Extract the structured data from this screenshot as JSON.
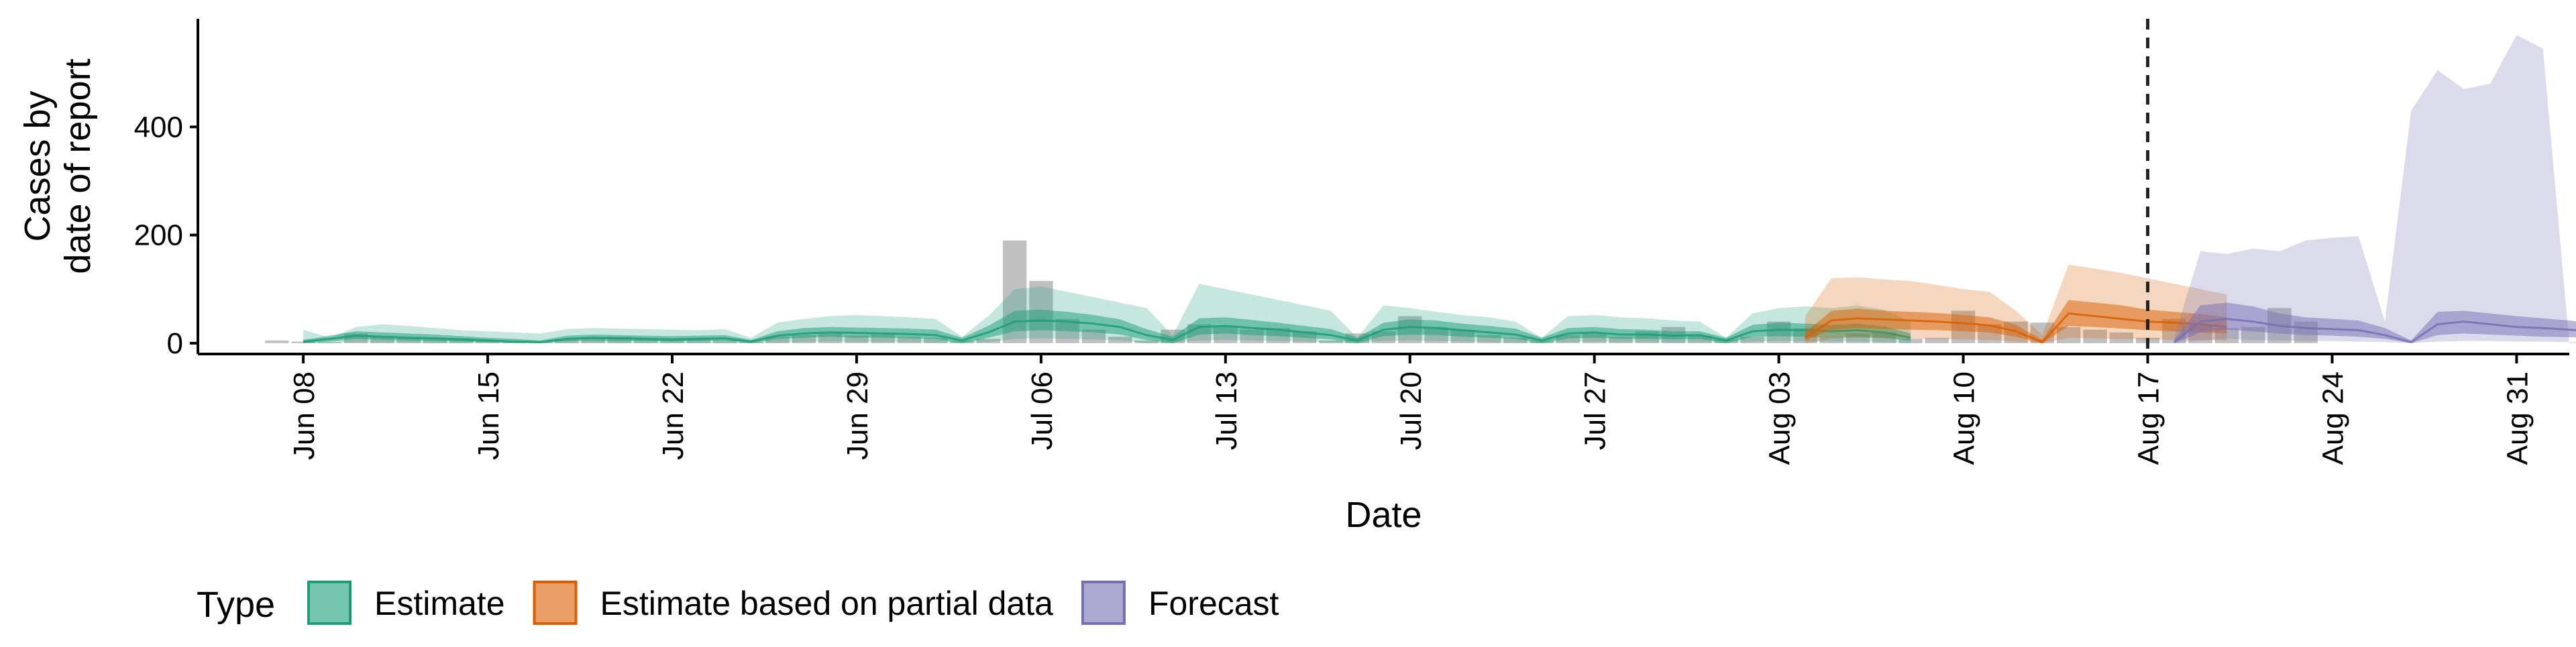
{
  "chart_data": {
    "type": "area",
    "title": "",
    "xlabel": "Date",
    "ylabel_lines": [
      "Cases by",
      "date of report"
    ],
    "ylim": [
      -20,
      600
    ],
    "y_ticks": [
      0,
      200,
      400
    ],
    "x_range": [
      "2020-06-04",
      "2020-09-02"
    ],
    "x_tick_dates": [
      "2020-06-08",
      "2020-06-15",
      "2020-06-22",
      "2020-06-29",
      "2020-07-06",
      "2020-07-13",
      "2020-07-20",
      "2020-07-27",
      "2020-08-03",
      "2020-08-10",
      "2020-08-17",
      "2020-08-24",
      "2020-08-31"
    ],
    "x_tick_labels": [
      "Jun 08",
      "Jun 15",
      "Jun 22",
      "Jun 29",
      "Jul 06",
      "Jul 13",
      "Jul 20",
      "Jul 27",
      "Aug 03",
      "Aug 10",
      "Aug 17",
      "Aug 24",
      "Aug 31"
    ],
    "forecast_start": "2020-08-17",
    "grid": false,
    "legend": {
      "position": "bottom",
      "title": "Type",
      "items": [
        {
          "label": "Estimate",
          "fill": "#1b9e77",
          "stroke": "#1b9e77"
        },
        {
          "label": "Estimate based on partial data",
          "fill": "#d95f02",
          "stroke": "#d95f02"
        },
        {
          "label": "Forecast",
          "fill": "#7570b3",
          "stroke": "#7570b3"
        }
      ]
    },
    "colors": {
      "Estimate": "#1b9e77",
      "Estimate based on partial data": "#d95f02",
      "Forecast": "#7570b3",
      "reported_cases": "#9e9e9e"
    },
    "reported_cases": {
      "start_date": "2020-06-07",
      "values": [
        5,
        3,
        2,
        18,
        12,
        10,
        8,
        9,
        5,
        3,
        2,
        8,
        10,
        12,
        8,
        7,
        8,
        6,
        3,
        12,
        15,
        18,
        14,
        16,
        12,
        10,
        5,
        8,
        190,
        115,
        45,
        25,
        12,
        5,
        25,
        35,
        30,
        25,
        28,
        22,
        5,
        18,
        22,
        50,
        30,
        25,
        15,
        10,
        5,
        15,
        18,
        12,
        22,
        30,
        14,
        8,
        12,
        40,
        28,
        12,
        18,
        20,
        8,
        10,
        60,
        35,
        40,
        38,
        30,
        25,
        20,
        10,
        45,
        35,
        28,
        30,
        65,
        40
      ]
    },
    "series": [
      {
        "name": "Estimate",
        "segments": [
          {
            "start_date": "2020-06-08",
            "median": [
              3,
              8,
              14,
              12,
              10,
              9,
              7,
              5,
              3,
              2,
              8,
              10,
              9,
              8,
              7,
              8,
              9,
              3,
              14,
              18,
              20,
              19,
              18,
              17,
              15,
              5,
              20,
              40,
              42,
              40,
              36,
              30,
              15,
              6,
              30,
              32,
              28,
              25,
              20,
              15,
              5,
              25,
              30,
              28,
              24,
              20,
              16,
              5,
              18,
              20,
              16,
              16,
              14,
              15,
              5,
              22,
              25,
              24,
              22,
              24,
              20,
              10
            ],
            "inner_low": [
              0,
              3,
              8,
              6,
              5,
              4,
              3,
              2,
              1,
              0,
              4,
              5,
              4,
              4,
              3,
              4,
              5,
              0,
              8,
              10,
              12,
              10,
              10,
              9,
              8,
              0,
              10,
              22,
              24,
              22,
              20,
              16,
              6,
              0,
              16,
              18,
              15,
              13,
              10,
              7,
              0,
              13,
              16,
              15,
              12,
              10,
              8,
              0,
              9,
              10,
              8,
              8,
              7,
              8,
              0,
              12,
              13,
              12,
              11,
              12,
              10,
              4
            ],
            "inner_high": [
              6,
              14,
              22,
              20,
              18,
              16,
              13,
              10,
              8,
              5,
              14,
              16,
              15,
              14,
              13,
              14,
              15,
              6,
              22,
              28,
              30,
              29,
              28,
              27,
              25,
              10,
              32,
              60,
              62,
              58,
              52,
              44,
              26,
              12,
              46,
              48,
              43,
              38,
              32,
              26,
              10,
              38,
              44,
              42,
              36,
              32,
              27,
              10,
              28,
              30,
              26,
              25,
              22,
              22,
              10,
              34,
              38,
              36,
              34,
              36,
              31,
              18
            ],
            "outer_low": [
              0,
              0,
              2,
              1,
              1,
              0,
              0,
              0,
              0,
              0,
              0,
              1,
              0,
              0,
              0,
              0,
              0,
              0,
              1,
              2,
              3,
              2,
              2,
              2,
              1,
              0,
              2,
              8,
              9,
              8,
              7,
              5,
              0,
              0,
              5,
              6,
              5,
              4,
              3,
              1,
              0,
              4,
              5,
              4,
              3,
              2,
              1,
              0,
              2,
              3,
              2,
              2,
              1,
              2,
              0,
              3,
              4,
              3,
              3,
              3,
              2,
              0
            ],
            "outer_high": [
              25,
              10,
              30,
              35,
              32,
              28,
              24,
              22,
              20,
              18,
              26,
              28,
              27,
              26,
              25,
              24,
              26,
              10,
              38,
              45,
              50,
              52,
              50,
              48,
              45,
              12,
              50,
              100,
              105,
              95,
              85,
              75,
              65,
              15,
              110,
              100,
              90,
              80,
              70,
              60,
              10,
              70,
              65,
              58,
              52,
              48,
              40,
              10,
              50,
              52,
              48,
              46,
              42,
              40,
              10,
              55,
              65,
              68,
              65,
              70,
              62,
              40
            ]
          }
        ]
      },
      {
        "name": "Estimate based on partial data",
        "segments": [
          {
            "start_date": "2020-08-04",
            "median": [
              10,
              42,
              46,
              44,
              42,
              40,
              37,
              33,
              22,
              2,
              55,
              50,
              45,
              40,
              38,
              35,
              30
            ],
            "inner_low": [
              5,
              25,
              28,
              26,
              25,
              24,
              22,
              20,
              12,
              0,
              32,
              30,
              27,
              24,
              22,
              20,
              18
            ],
            "inner_high": [
              20,
              60,
              64,
              60,
              58,
              56,
              52,
              48,
              34,
              6,
              80,
              75,
              70,
              62,
              58,
              54,
              48
            ],
            "outer_low": [
              0,
              8,
              10,
              9,
              8,
              8,
              7,
              6,
              3,
              0,
              10,
              9,
              8,
              7,
              6,
              6,
              5
            ],
            "outer_high": [
              50,
              120,
              122,
              118,
              115,
              108,
              100,
              95,
              60,
              15,
              145,
              138,
              130,
              120,
              110,
              100,
              90
            ]
          }
        ]
      },
      {
        "name": "Forecast",
        "segments": [
          {
            "start_date": "2020-08-18",
            "median": [
              2,
              40,
              45,
              40,
              32,
              28,
              26,
              24,
              15,
              2,
              35,
              40,
              35,
              30,
              28,
              25,
              22
            ],
            "inner_low": [
              0,
              20,
              25,
              22,
              18,
              15,
              14,
              12,
              8,
              0,
              15,
              18,
              16,
              14,
              12,
              11,
              10
            ],
            "inner_high": [
              5,
              70,
              75,
              68,
              55,
              48,
              45,
              42,
              28,
              5,
              58,
              60,
              55,
              50,
              46,
              42,
              36
            ],
            "outer_low": [
              0,
              5,
              8,
              6,
              5,
              4,
              4,
              3,
              2,
              0,
              3,
              4,
              4,
              3,
              3,
              2,
              2
            ],
            "outer_high": [
              10,
              170,
              165,
              175,
              170,
              190,
              195,
              198,
              40,
              430,
              505,
              470,
              480,
              570,
              545,
              0,
              0
            ]
          }
        ]
      }
    ]
  }
}
